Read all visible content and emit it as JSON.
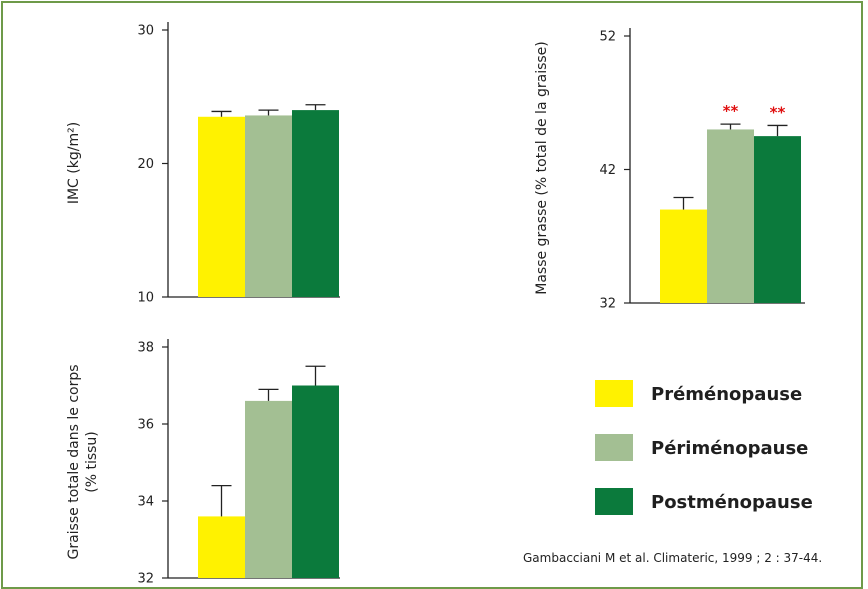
{
  "colors": {
    "premenopause": "#fff200",
    "perimenopause": "#a3bf93",
    "postmenopause": "#0b7a3c",
    "frame": "#6e9a49",
    "significance": "#e01010",
    "axis": "#222222"
  },
  "legend": {
    "items": [
      {
        "label": "Préménopause",
        "color_key": "premenopause"
      },
      {
        "label": "Périménopause",
        "color_key": "perimenopause"
      },
      {
        "label": "Postménopause",
        "color_key": "postmenopause"
      }
    ]
  },
  "source": "Gambacciani M et al. Climateric, 1999 ; 2 : 37-44.",
  "chart_data": [
    {
      "id": "imc",
      "type": "bar",
      "ylabel": [
        "IMC (kg/m²)"
      ],
      "ylim": [
        10,
        30
      ],
      "yticks": [
        10,
        20,
        30
      ],
      "ytick_labels": [
        "10",
        "20",
        "30"
      ],
      "categories": [
        "Préménopause",
        "Périménopause",
        "Postménopause"
      ],
      "values": [
        23.5,
        23.6,
        24.0
      ],
      "errors": [
        0.4,
        0.4,
        0.4
      ],
      "annotations": [
        "",
        "",
        ""
      ]
    },
    {
      "id": "masse-grasse",
      "type": "bar",
      "ylabel": [
        "Masse grasse (% total de la graisse)"
      ],
      "ylim": [
        32,
        52
      ],
      "yticks": [
        32,
        42,
        52
      ],
      "ytick_labels": [
        "32",
        "42",
        "52"
      ],
      "categories": [
        "Préménopause",
        "Périménopause",
        "Postménopause"
      ],
      "values": [
        39.0,
        45.0,
        44.5
      ],
      "errors": [
        0.9,
        0.4,
        0.8
      ],
      "annotations": [
        "",
        "**",
        "**"
      ]
    },
    {
      "id": "graisse-totale",
      "type": "bar",
      "ylabel": [
        "Graisse totale dans le corps",
        "(% tissu)"
      ],
      "ylim": [
        32,
        38
      ],
      "yticks": [
        32,
        34,
        36,
        38
      ],
      "ytick_labels": [
        "32",
        "34",
        "36",
        "38"
      ],
      "categories": [
        "Préménopause",
        "Périménopause",
        "Postménopause"
      ],
      "values": [
        33.6,
        36.6,
        37.0
      ],
      "errors": [
        0.8,
        0.3,
        0.5
      ],
      "annotations": [
        "",
        "",
        ""
      ]
    }
  ]
}
